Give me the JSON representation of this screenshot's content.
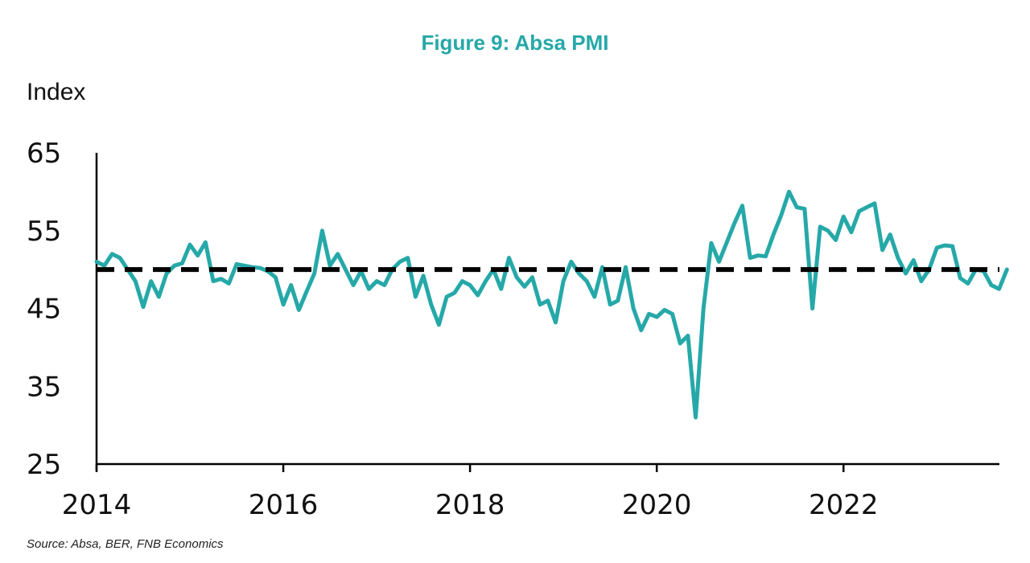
{
  "chart_data": {
    "type": "line",
    "title": "Figure 9: Absa PMI",
    "ylabel": "Index",
    "xlabel": "",
    "ylim": [
      25,
      65
    ],
    "yticks": [
      25,
      35,
      45,
      55,
      65
    ],
    "xlim": [
      2014.0,
      2023.67
    ],
    "xticks": [
      2014,
      2016,
      2018,
      2020,
      2022
    ],
    "grid": false,
    "series": [
      {
        "color": "#26a8a8",
        "start": "2014-01",
        "frequency": "monthly",
        "values": [
          51.0,
          50.5,
          52.0,
          51.5,
          50.0,
          48.5,
          45.2,
          48.5,
          46.5,
          49.5,
          50.5,
          50.8,
          53.2,
          51.8,
          53.5,
          48.5,
          48.8,
          48.2,
          50.7,
          50.5,
          50.3,
          50.2,
          49.8,
          49.0,
          45.5,
          48.0,
          44.8,
          47.2,
          49.5,
          55.0,
          50.5,
          52.0,
          50.0,
          48.0,
          49.8,
          47.5,
          48.5,
          48.0,
          50.0,
          51.0,
          51.5,
          46.5,
          49.2,
          45.5,
          42.9,
          46.5,
          47.0,
          48.5,
          48.0,
          46.7,
          48.5,
          50.0,
          47.5,
          51.5,
          49.0,
          47.8,
          49.0,
          45.5,
          46.0,
          43.2,
          48.5,
          51.0,
          49.5,
          48.5,
          46.5,
          50.3,
          45.5,
          46.0,
          50.3,
          45.0,
          42.2,
          44.3,
          43.9,
          44.8,
          44.3,
          40.5,
          41.5,
          31.0,
          45.0,
          53.4,
          51.0,
          53.5,
          56.0,
          58.2,
          51.5,
          51.8,
          51.7,
          54.5,
          57.0,
          60.0,
          58.0,
          57.8,
          45.0,
          55.5,
          55.0,
          53.8,
          56.8,
          54.8,
          57.5,
          58.0,
          58.5,
          52.5,
          54.5,
          51.5,
          49.5,
          51.2,
          48.5,
          50.0,
          52.8,
          53.1,
          53.0,
          48.9,
          48.2,
          50.0,
          49.8,
          48.0,
          47.5,
          50.0
        ]
      },
      {
        "color": "#000000",
        "style": "dashed",
        "values": [
          50,
          50
        ]
      }
    ]
  },
  "text": {
    "title": "Figure 9: Absa PMI",
    "y_unit": "Index",
    "source": "Source: Absa, BER, FNB Economics"
  }
}
